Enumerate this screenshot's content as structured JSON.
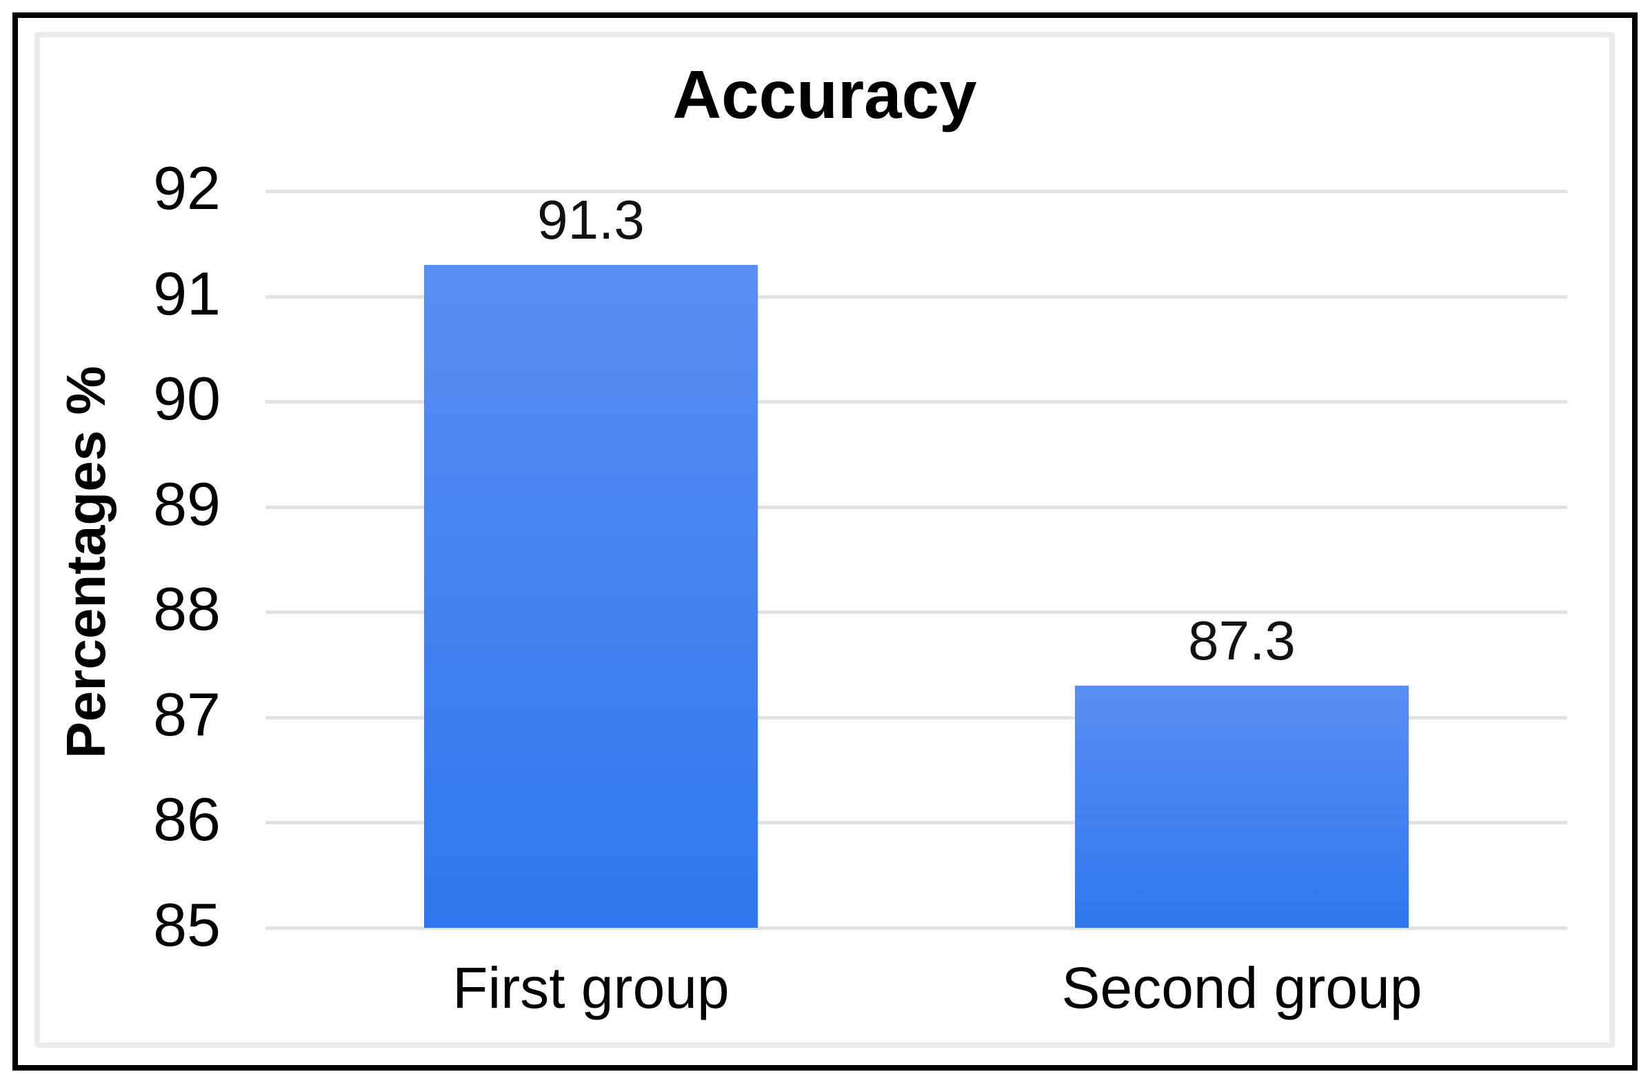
{
  "figure": {
    "outer_border_color": "#000000",
    "widget_border_color": "#ebebeb",
    "background_color": "#ffffff"
  },
  "chart_data": {
    "type": "bar",
    "title": "Accuracy",
    "xlabel": "",
    "ylabel": "Percentages %",
    "categories": [
      "First group",
      "Second group"
    ],
    "values": [
      91.3,
      87.3
    ],
    "value_labels": [
      "91.3",
      "87.3"
    ],
    "ylim": [
      85,
      92
    ],
    "yticks": [
      85,
      86,
      87,
      88,
      89,
      90,
      91,
      92
    ],
    "grid": true,
    "gridline_color": "#e2e2e2",
    "legend": false,
    "legend_position": "none",
    "bar_color_top": "#5a8ef3",
    "bar_color_bottom": "#2e77ee",
    "text_color": "#000000"
  }
}
